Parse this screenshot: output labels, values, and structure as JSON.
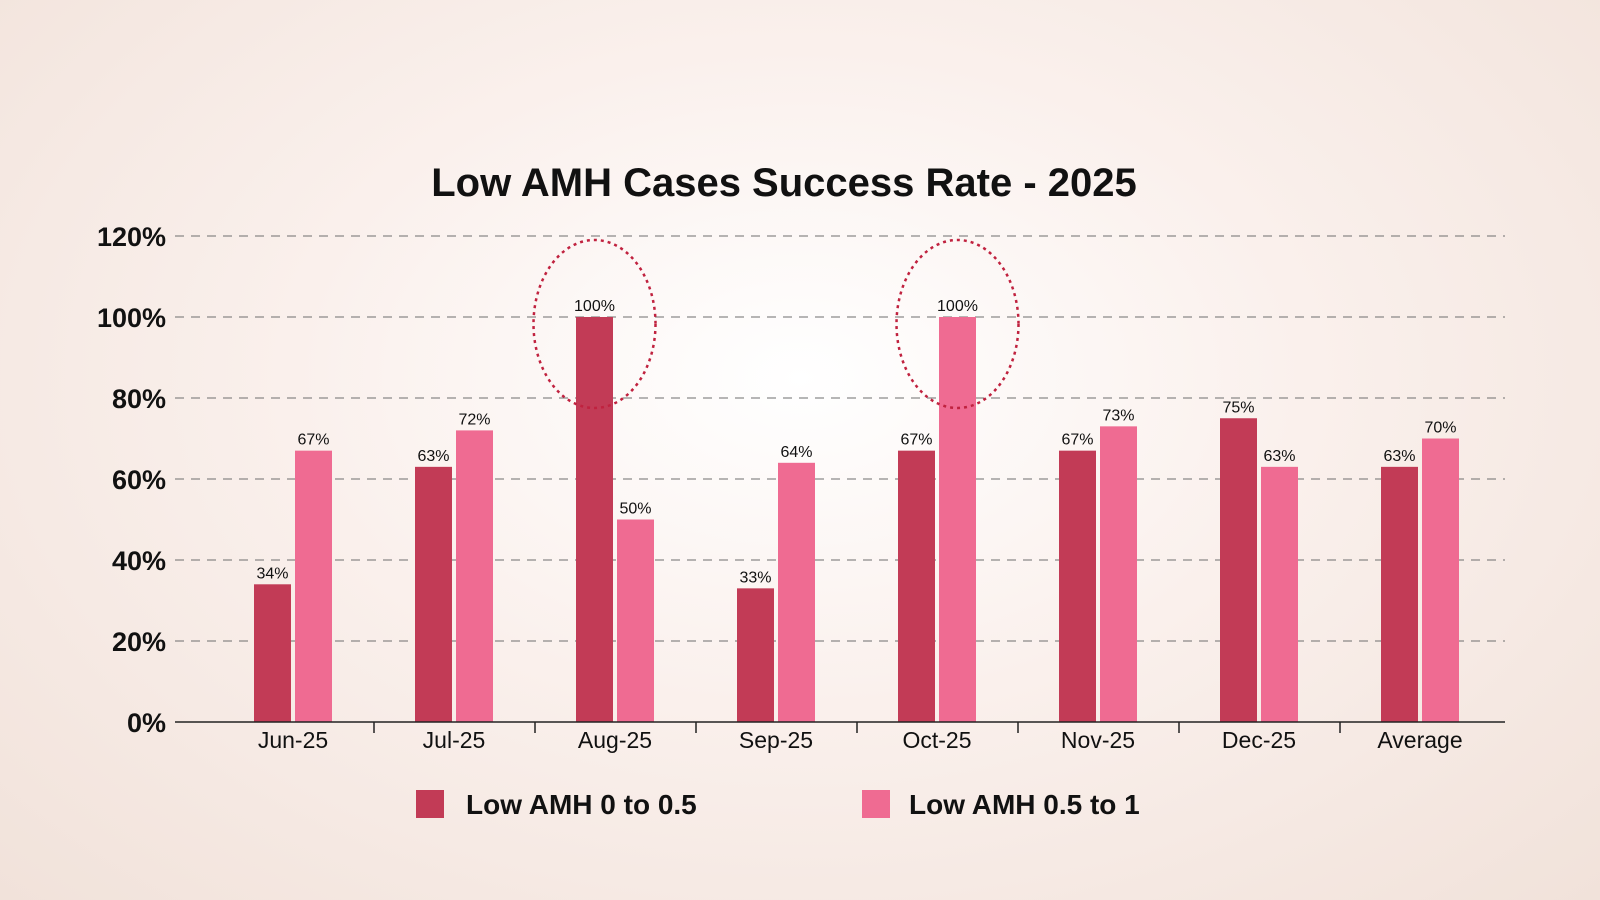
{
  "chart_data": {
    "type": "bar",
    "title": "Low AMH Cases Success Rate - 2025",
    "xlabel": "",
    "ylabel": "",
    "categories": [
      "Jun-25",
      "Jul-25",
      "Aug-25",
      "Sep-25",
      "Oct-25",
      "Nov-25",
      "Dec-25",
      "Average"
    ],
    "series": [
      {
        "name": "Low AMH 0 to 0.5",
        "color": "#c23b56",
        "values": [
          34,
          63,
          100,
          33,
          67,
          67,
          75,
          63
        ],
        "labels": [
          "34%",
          "63%",
          "100%",
          "33%",
          "67%",
          "67%",
          "75%",
          "63%"
        ]
      },
      {
        "name": "Low AMH 0.5 to 1",
        "color": "#ef6b92",
        "values": [
          67,
          72,
          50,
          64,
          100,
          73,
          63,
          70
        ],
        "labels": [
          "67%",
          "72%",
          "50%",
          "64%",
          "100%",
          "73%",
          "63%",
          "70%"
        ]
      }
    ],
    "ylim": [
      0,
      120
    ],
    "yticks": [
      0,
      20,
      40,
      60,
      80,
      100,
      120
    ],
    "ytick_labels": [
      "0%",
      "20%",
      "40%",
      "60%",
      "80%",
      "100%",
      "120%"
    ],
    "grid": true,
    "grid_style": "dashed",
    "legend_position": "bottom",
    "highlights": [
      {
        "category": "Aug-25",
        "series": "Low AMH 0 to 0.5",
        "style": "dotted-ellipse",
        "color": "#c0223f"
      },
      {
        "category": "Oct-25",
        "series": "Low AMH 0.5 to 1",
        "style": "dotted-ellipse",
        "color": "#c0223f"
      }
    ]
  }
}
